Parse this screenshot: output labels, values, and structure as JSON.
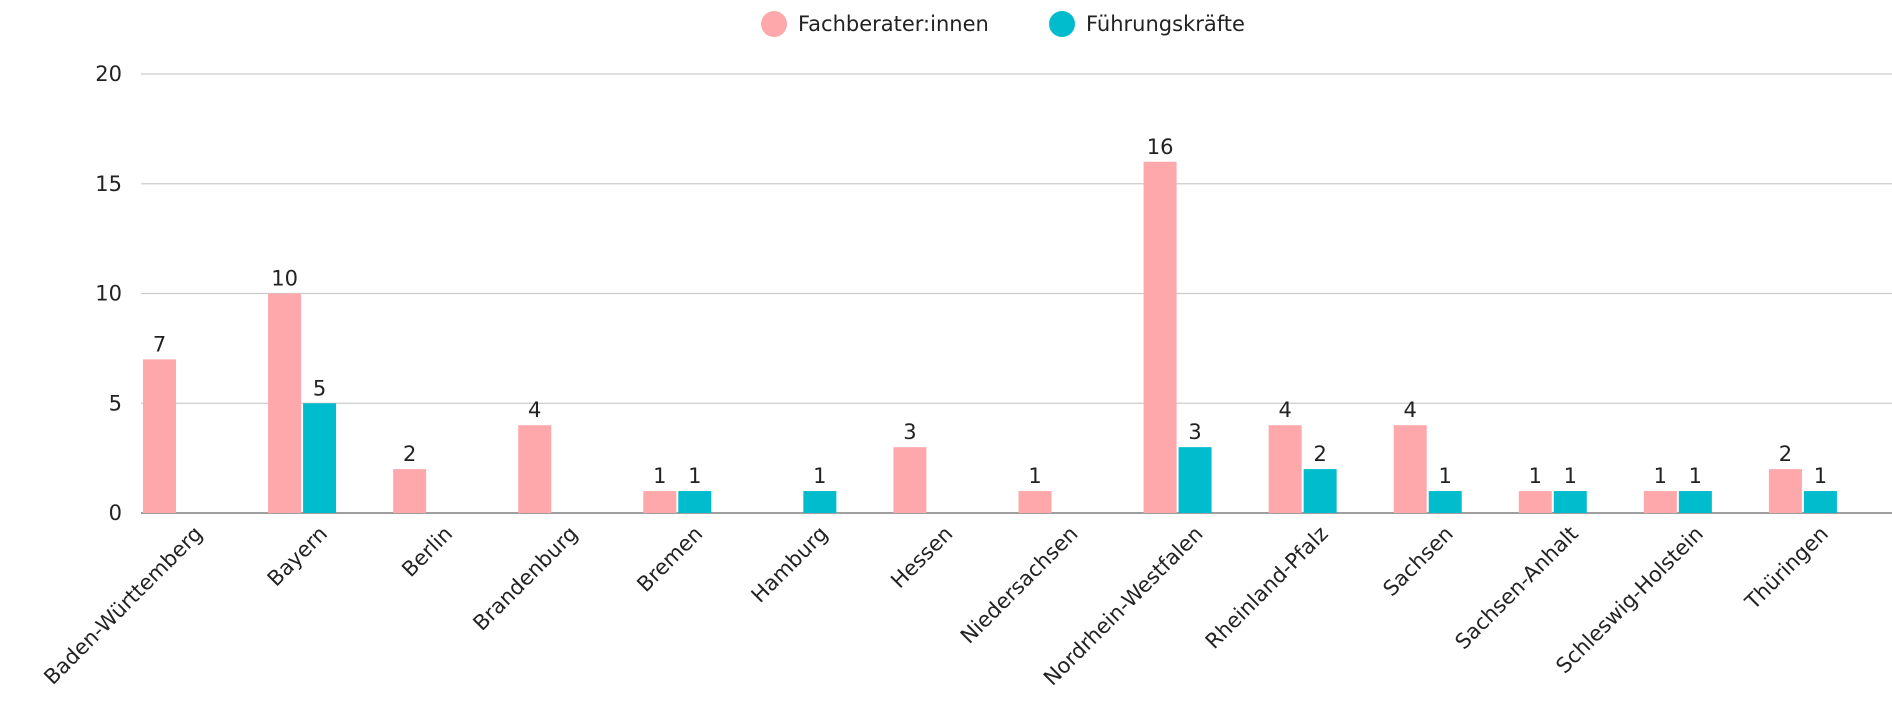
{
  "chart_data": {
    "type": "bar",
    "categories": [
      "Baden-Württemberg",
      "Bayern",
      "Berlin",
      "Brandenburg",
      "Bremen",
      "Hamburg",
      "Hessen",
      "Niedersachsen",
      "Nordrhein-Westfalen",
      "Rheinland-Pfalz",
      "Sachsen",
      "Sachsen-Anhalt",
      "Schleswig-Holstein",
      "Thüringen"
    ],
    "series": [
      {
        "name": "Fachberater:innen",
        "color": "#ffa8ab",
        "values": [
          7,
          10,
          2,
          4,
          1,
          null,
          3,
          1,
          16,
          4,
          4,
          1,
          1,
          2
        ]
      },
      {
        "name": "Führungskräfte",
        "color": "#00bccc",
        "values": [
          null,
          5,
          null,
          null,
          1,
          1,
          null,
          null,
          3,
          2,
          1,
          1,
          1,
          1
        ]
      }
    ],
    "ylim": [
      0,
      20
    ],
    "yticks": [
      0,
      5,
      10,
      15,
      20
    ],
    "grid": true,
    "legend": "top"
  }
}
